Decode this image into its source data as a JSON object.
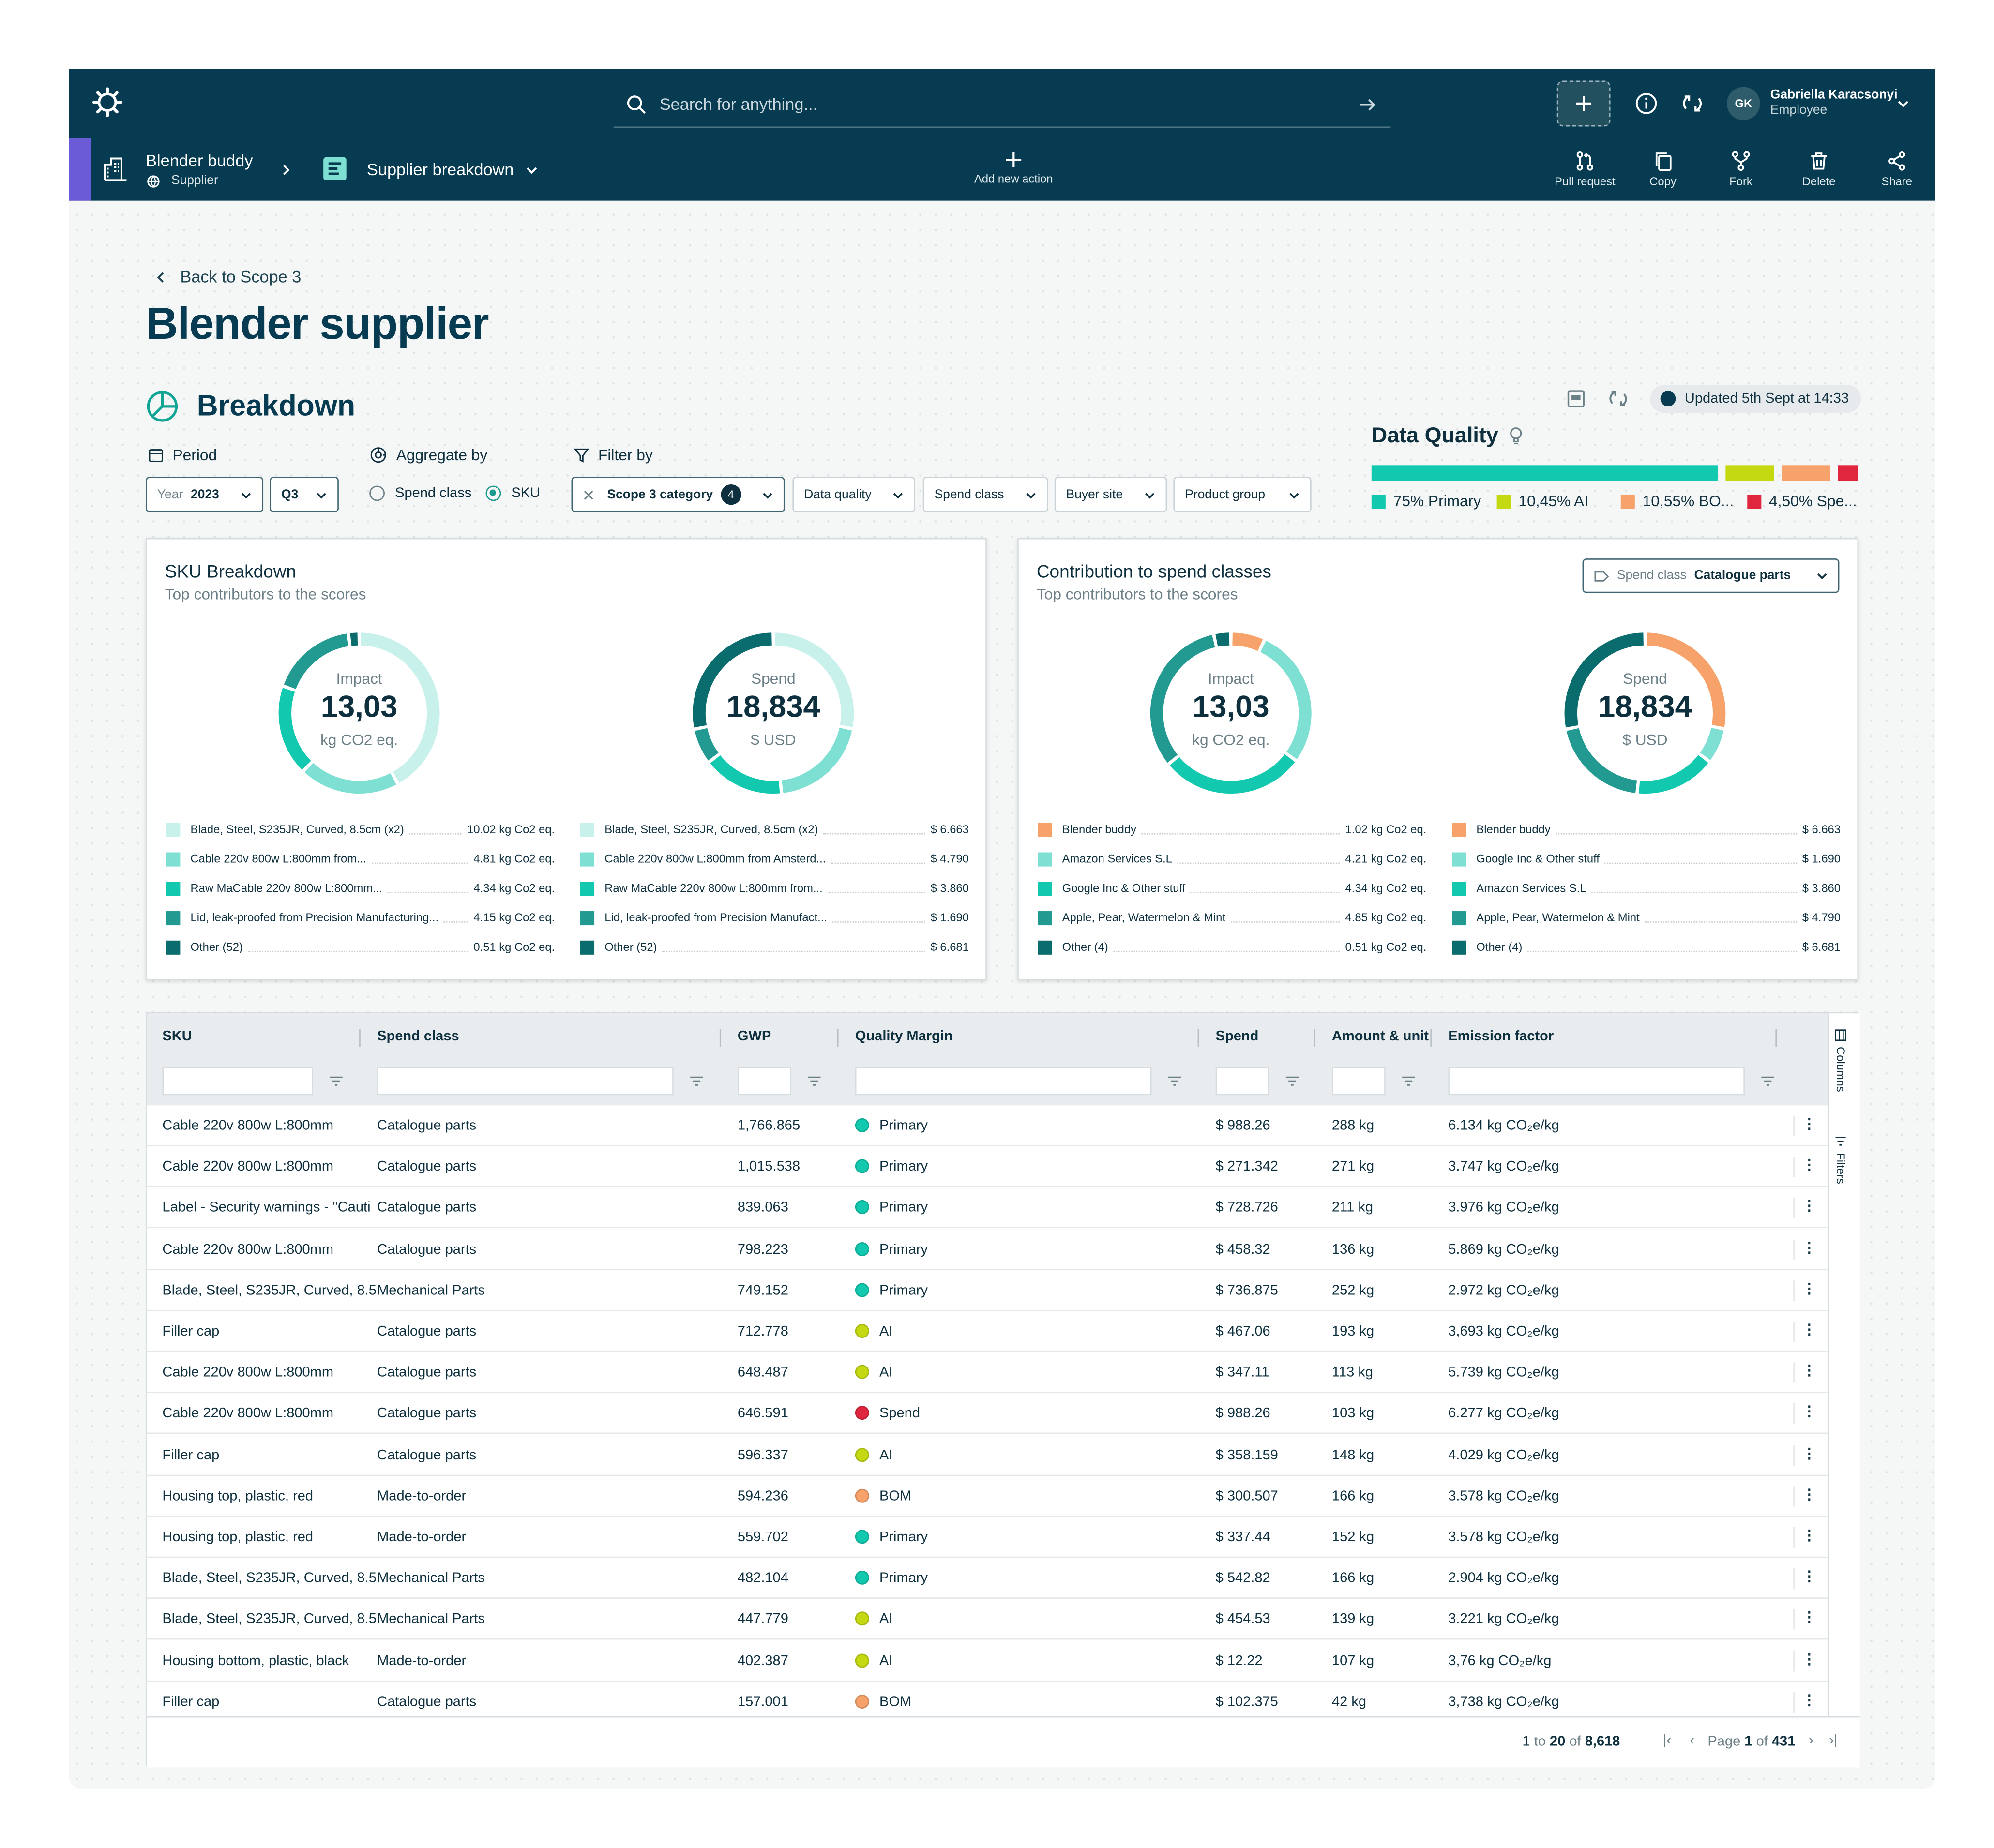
{
  "header": {
    "search_placeholder": "Search for anything...",
    "user_initials": "GK",
    "user_name": "Gabriella Karacsonyi",
    "user_role": "Employee"
  },
  "subheader": {
    "project_name": "Blender buddy",
    "project_type": "Supplier",
    "view_name": "Supplier breakdown",
    "add_action": "Add new action",
    "actions": [
      "Pull request",
      "Copy",
      "Fork",
      "Delete",
      "Share"
    ]
  },
  "page": {
    "back_label": "Back to Scope 3",
    "title": "Blender supplier",
    "section_title": "Breakdown",
    "updated": "Updated 5th Sept at 14:33"
  },
  "controls": {
    "period_label": "Period",
    "year_prefix": "Year",
    "year_value": "2023",
    "quarter": "Q3",
    "aggregate_label": "Aggregate by",
    "aggregate_options": [
      "Spend class",
      "SKU"
    ],
    "aggregate_selected": "SKU",
    "filter_label": "Filter by",
    "filter_active": "Scope 3 category",
    "filter_active_count": "4",
    "filters": [
      "Data quality",
      "Spend class",
      "Buyer site",
      "Product group"
    ]
  },
  "data_quality": {
    "title": "Data Quality",
    "segments": [
      {
        "label": "75% Primary",
        "percent": 75,
        "color": "#12c9b0"
      },
      {
        "label": "10,45% AI",
        "percent": 10.45,
        "color": "#c5d913"
      },
      {
        "label": "10,55% BO...",
        "percent": 10.55,
        "color": "#f7a26a"
      },
      {
        "label": "4,50% Spe...",
        "percent": 4.5,
        "color": "#e0263e"
      }
    ]
  },
  "cards": {
    "sku": {
      "title": "SKU Breakdown",
      "subtitle": "Top contributors to the scores",
      "impact": {
        "label": "Impact",
        "value": "13,03",
        "unit": "kg CO2 eq."
      },
      "spend": {
        "label": "Spend",
        "value": "18,834",
        "unit": "$ USD"
      },
      "impact_items": [
        {
          "label": "Blade, Steel, S235JR, Curved, 8.5cm (x2)",
          "value": "10.02 kg Co2 eq.",
          "color": "#c8f1ec"
        },
        {
          "label": "Cable 220v 800w L:800mm from...",
          "value": "4.81 kg Co2 eq.",
          "color": "#7edfd3"
        },
        {
          "label": "Raw MaCable 220v 800w L:800mm...",
          "value": "4.34 kg Co2 eq.",
          "color": "#12c9b0"
        },
        {
          "label": "Lid, leak-proofed from Precision Manufacturing...",
          "value": "4.15 kg Co2 eq.",
          "color": "#239a91"
        },
        {
          "label": "Other (52)",
          "value": "0.51 kg Co2 eq.",
          "color": "#0b6c6e"
        }
      ],
      "spend_items": [
        {
          "label": "Blade, Steel, S235JR, Curved, 8.5cm (x2)",
          "value": "$ 6.663",
          "color": "#c8f1ec"
        },
        {
          "label": "Cable 220v 800w L:800mm from Amsterd...",
          "value": "$ 4.790",
          "color": "#7edfd3"
        },
        {
          "label": "Raw MaCable 220v 800w L:800mm from...",
          "value": "$ 3.860",
          "color": "#12c9b0"
        },
        {
          "label": "Lid, leak-proofed from Precision Manufact...",
          "value": "$ 1.690",
          "color": "#239a91"
        },
        {
          "label": "Other (52)",
          "value": "$ 6.681",
          "color": "#0b6c6e"
        }
      ]
    },
    "classes": {
      "title": "Contribution to spend classes",
      "subtitle": "Top contributors to the scores",
      "dropdown_label": "Spend class",
      "dropdown_value": "Catalogue parts",
      "impact": {
        "label": "Impact",
        "value": "13,03",
        "unit": "kg CO2 eq."
      },
      "spend": {
        "label": "Spend",
        "value": "18,834",
        "unit": "$ USD"
      },
      "impact_items": [
        {
          "label": "Blender buddy",
          "value": "1.02 kg Co2 eq.",
          "color": "#f7a26a"
        },
        {
          "label": "Amazon Services S.L",
          "value": "4.21 kg Co2 eq.",
          "color": "#7edfd3"
        },
        {
          "label": "Google Inc & Other stuff",
          "value": "4.34 kg Co2 eq.",
          "color": "#12c9b0"
        },
        {
          "label": "Apple, Pear, Watermelon & Mint",
          "value": "4.85 kg Co2 eq.",
          "color": "#239a91"
        },
        {
          "label": "Other (4)",
          "value": "0.51 kg Co2 eq.",
          "color": "#0b6c6e"
        }
      ],
      "spend_items": [
        {
          "label": "Blender buddy",
          "value": "$ 6.663",
          "color": "#f7a26a"
        },
        {
          "label": "Google Inc & Other stuff",
          "value": "$ 1.690",
          "color": "#7edfd3"
        },
        {
          "label": "Amazon Services S.L",
          "value": "$ 3.860",
          "color": "#12c9b0"
        },
        {
          "label": "Apple, Pear, Watermelon & Mint",
          "value": "$ 4.790",
          "color": "#239a91"
        },
        {
          "label": "Other (4)",
          "value": "$ 6.681",
          "color": "#0b6c6e"
        }
      ]
    }
  },
  "table": {
    "columns": [
      "SKU",
      "Spend class",
      "GWP",
      "Quality Margin",
      "Spend",
      "Amount & unit",
      "Emission factor"
    ],
    "side_tabs": [
      "Columns",
      "Filters"
    ],
    "quality_colors": {
      "Primary": "#12c9b0",
      "AI": "#c5d913",
      "Spend": "#e0263e",
      "BOM": "#f7a26a"
    },
    "rows": [
      {
        "sku": "Cable 220v 800w L:800mm",
        "cls": "Catalogue parts",
        "gwp": "1,766.865",
        "q": "Primary",
        "spend": "$ 988.26",
        "amt": "288 kg",
        "ef": "6.134 kg CO₂e/kg"
      },
      {
        "sku": "Cable 220v 800w L:800mm",
        "cls": "Catalogue parts",
        "gwp": "1,015.538",
        "q": "Primary",
        "spend": "$ 271.342",
        "amt": "271 kg",
        "ef": "3.747 kg CO₂e/kg"
      },
      {
        "sku": "Label - Security warnings - \"Cauti",
        "cls": "Catalogue parts",
        "gwp": "839.063",
        "q": "Primary",
        "spend": "$ 728.726",
        "amt": "211 kg",
        "ef": "3.976 kg CO₂e/kg"
      },
      {
        "sku": "Cable 220v 800w L:800mm",
        "cls": "Catalogue parts",
        "gwp": "798.223",
        "q": "Primary",
        "spend": "$ 458.32",
        "amt": "136 kg",
        "ef": "5.869 kg CO₂e/kg"
      },
      {
        "sku": "Blade, Steel, S235JR, Curved, 8.5",
        "cls": "Mechanical Parts",
        "gwp": "749.152",
        "q": "Primary",
        "spend": "$ 736.875",
        "amt": "252 kg",
        "ef": "2.972 kg CO₂e/kg"
      },
      {
        "sku": "Filler cap",
        "cls": "Catalogue parts",
        "gwp": "712.778",
        "q": "AI",
        "spend": "$ 467.06",
        "amt": "193 kg",
        "ef": "3,693 kg CO₂e/kg"
      },
      {
        "sku": "Cable 220v 800w L:800mm",
        "cls": "Catalogue parts",
        "gwp": "648.487",
        "q": "AI",
        "spend": "$ 347.11",
        "amt": "113 kg",
        "ef": "5.739 kg CO₂e/kg"
      },
      {
        "sku": "Cable 220v 800w L:800mm",
        "cls": "Catalogue parts",
        "gwp": "646.591",
        "q": "Spend",
        "spend": "$ 988.26",
        "amt": "103 kg",
        "ef": "6.277 kg CO₂e/kg"
      },
      {
        "sku": "Filler cap",
        "cls": "Catalogue parts",
        "gwp": "596.337",
        "q": "AI",
        "spend": "$ 358.159",
        "amt": "148 kg",
        "ef": "4.029 kg CO₂e/kg"
      },
      {
        "sku": "Housing top, plastic, red",
        "cls": "Made-to-order",
        "gwp": "594.236",
        "q": "BOM",
        "spend": "$ 300.507",
        "amt": "166 kg",
        "ef": "3.578 kg CO₂e/kg"
      },
      {
        "sku": "Housing top, plastic, red",
        "cls": "Made-to-order",
        "gwp": "559.702",
        "q": "Primary",
        "spend": "$ 337.44",
        "amt": "152 kg",
        "ef": "3.578 kg CO₂e/kg"
      },
      {
        "sku": "Blade, Steel, S235JR, Curved, 8.5",
        "cls": "Mechanical Parts",
        "gwp": "482.104",
        "q": "Primary",
        "spend": "$ 542.82",
        "amt": "166 kg",
        "ef": "2.904 kg CO₂e/kg"
      },
      {
        "sku": "Blade, Steel, S235JR, Curved, 8.5",
        "cls": "Mechanical Parts",
        "gwp": "447.779",
        "q": "AI",
        "spend": "$ 454.53",
        "amt": "139 kg",
        "ef": "3.221 kg CO₂e/kg"
      },
      {
        "sku": "Housing bottom, plastic, black",
        "cls": "Made-to-order",
        "gwp": "402.387",
        "q": "AI",
        "spend": "$ 12.22",
        "amt": "107 kg",
        "ef": "3,76 kg CO₂e/kg"
      },
      {
        "sku": "Filler cap",
        "cls": "Catalogue parts",
        "gwp": "157.001",
        "q": "BOM",
        "spend": "$ 102.375",
        "amt": "42 kg",
        "ef": "3,738 kg CO₂e/kg"
      }
    ],
    "pagination": {
      "from": "1",
      "to": "20",
      "total": "8,618",
      "page": "1",
      "pages": "431"
    }
  }
}
